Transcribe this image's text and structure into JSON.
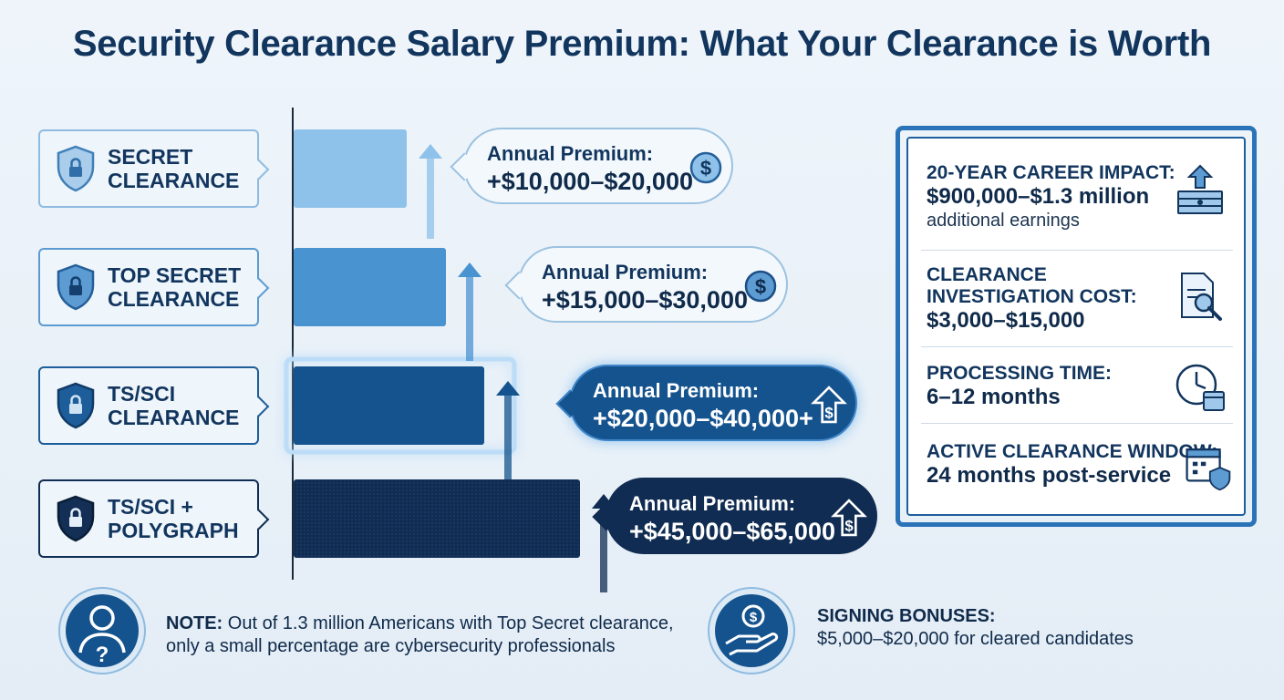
{
  "title": "Security Clearance Salary Premium: What Your Clearance is Worth",
  "chart_data": {
    "type": "bar",
    "orientation": "horizontal",
    "categories": [
      "SECRET\nCLEARANCE",
      "TOP SECRET\nCLEARANCE",
      "TS/SCI\nCLEARANCE",
      "TS/SCI +\nPOLYGRAPH"
    ],
    "series": [
      {
        "values_low": [
          10000,
          15000,
          20000,
          45000
        ],
        "values_high": [
          20000,
          30000,
          40000,
          65000
        ]
      }
    ],
    "premium_label": "Annual Premium:",
    "premium_text": [
      "+$10,000–$20,000",
      "+$15,000–$30,000",
      "+$20,000–$40,000+",
      "+$45,000–$65,000"
    ],
    "bar_colors": [
      "#8ec2ea",
      "#4a93d1",
      "#15538e",
      "#102c52"
    ],
    "axis_ranges": {
      "x": [
        0,
        90000
      ]
    },
    "grid": false,
    "legend": "none"
  },
  "panel": {
    "rows": [
      {
        "heading": "20-YEAR CAREER IMPACT:",
        "value": "$900,000–$1.3 million",
        "sub": "additional earnings",
        "icon": "money-stack-icon"
      },
      {
        "heading": "CLEARANCE\nINVESTIGATION COST:",
        "value": "$3,000–$15,000",
        "sub": "",
        "icon": "document-search-icon"
      },
      {
        "heading": "PROCESSING TIME:",
        "value": "6–12 months",
        "sub": "",
        "icon": "clock-calendar-icon"
      },
      {
        "heading": "ACTIVE CLEARANCE WINDOW:",
        "value": "24 months post-service",
        "sub": "",
        "icon": "calendar-shield-icon"
      }
    ]
  },
  "notes": {
    "note_label": "NOTE:",
    "note_text": " Out of 1.3 million Americans with Top Secret clearance,",
    "note_text2": "only a small percentage are cybersecurity professionals",
    "bonus_label": "SIGNING BONUSES:",
    "bonus_text": "$5,000–$20,000 for cleared candidates"
  },
  "colors": {
    "accent": "#2b73b8",
    "navy": "#12355e",
    "light_bar": "#8ec2ea"
  }
}
